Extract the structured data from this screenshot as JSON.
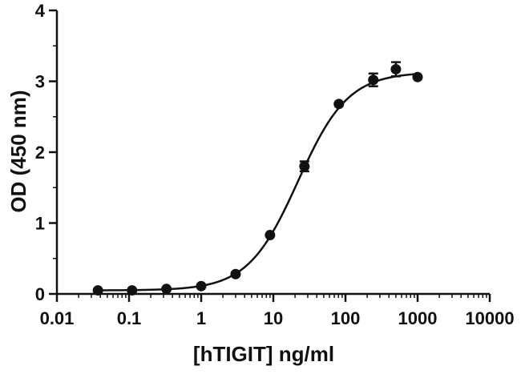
{
  "chart_data": {
    "type": "scatter",
    "title": "",
    "xlabel": "[hTIGIT] ng/ml",
    "ylabel": "OD (450 nm)",
    "x_scale": "log",
    "xlim": [
      0.01,
      10000
    ],
    "ylim": [
      0,
      4
    ],
    "x_ticks": [
      0.01,
      0.1,
      1,
      10,
      100,
      1000,
      10000
    ],
    "x_tick_labels": [
      "0.01",
      "0.1",
      "1",
      "10",
      "100",
      "1000",
      "10000"
    ],
    "y_ticks": [
      0,
      1,
      2,
      3,
      4
    ],
    "y_tick_labels": [
      "0",
      "1",
      "2",
      "3",
      "4"
    ],
    "grid": false,
    "legend": "none",
    "series": [
      {
        "x": [
          0.037,
          0.11,
          0.33,
          1,
          3,
          9,
          27,
          81,
          243,
          500,
          1000
        ],
        "y": [
          0.05,
          0.05,
          0.07,
          0.11,
          0.28,
          0.83,
          1.8,
          2.68,
          3.02,
          3.17,
          3.06
        ],
        "error": [
          0,
          0,
          0,
          0,
          0,
          0,
          0.07,
          0,
          0.09,
          0.1,
          0
        ]
      }
    ],
    "fit_curve": {
      "model": "4PL",
      "bottom": 0.05,
      "top": 3.13,
      "ec50": 22,
      "hill": 1.25
    },
    "colors": {
      "axis": "#111111",
      "marker": "#111111",
      "curve": "#111111"
    }
  }
}
